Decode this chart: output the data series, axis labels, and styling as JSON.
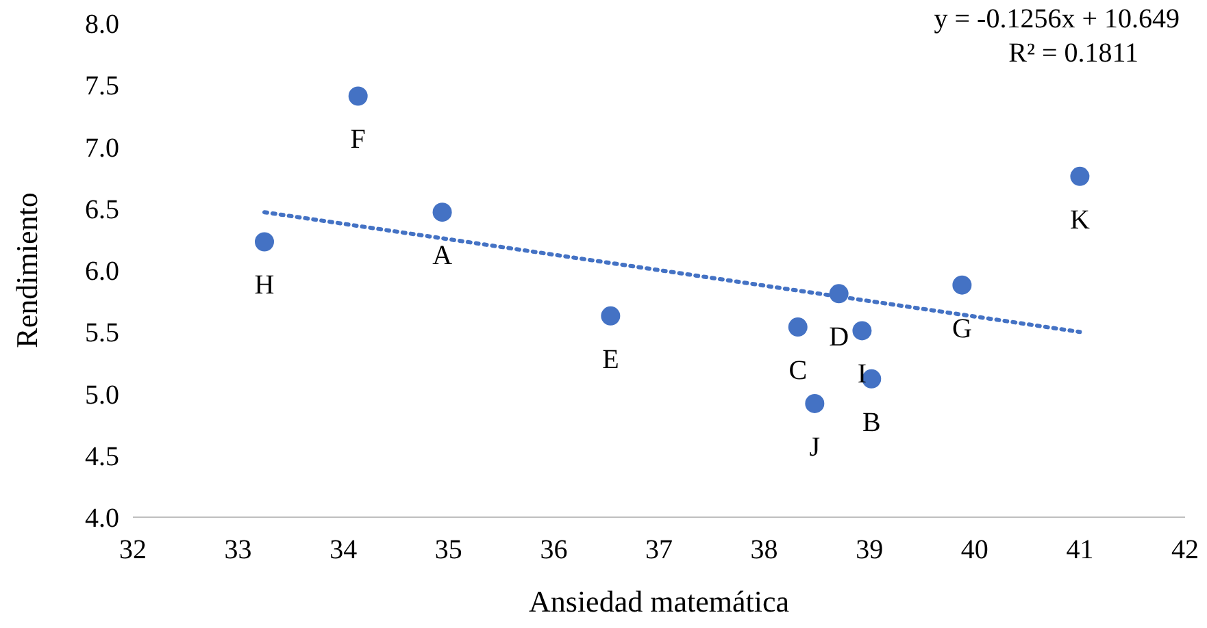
{
  "chart_data": {
    "type": "scatter",
    "xlabel": "Ansiedad matemática",
    "ylabel": "Rendimiento",
    "xlim": [
      32,
      42
    ],
    "xticks": [
      32,
      33,
      34,
      35,
      36,
      37,
      38,
      39,
      40,
      41,
      42
    ],
    "ylim": [
      4,
      8
    ],
    "yticks": [
      {
        "value": 4,
        "label": "4.0"
      },
      {
        "value": 4.5,
        "label": "4.5"
      },
      {
        "value": 5,
        "label": "5.0"
      },
      {
        "value": 5.5,
        "label": "5.5"
      },
      {
        "value": 6,
        "label": "6.0"
      },
      {
        "value": 6.5,
        "label": "6.5"
      },
      {
        "value": 7,
        "label": "7.0"
      },
      {
        "value": 7.5,
        "label": "7.5"
      },
      {
        "value": 8,
        "label": "8.0"
      }
    ],
    "grid": false,
    "marker": "circle",
    "series": [
      {
        "color": "#4472c4",
        "x": [
          33.25,
          34.14,
          34.94,
          36.54,
          38.32,
          38.48,
          38.71,
          38.93,
          39.02,
          39.88,
          41.0
        ],
        "values": [
          6.23,
          7.41,
          6.47,
          5.63,
          5.54,
          4.92,
          5.81,
          5.51,
          5.12,
          5.88,
          6.76
        ]
      },
      {
        "type": "line",
        "color": "#4472c4",
        "line_style": "dotted",
        "marker": "none",
        "x": [
          33.25,
          41
        ],
        "values": [
          6.47,
          5.5
        ]
      }
    ],
    "annotations": [
      "y = -0.1256x + 10.649",
      "R² = 0.1811",
      {
        "text": "H",
        "x": 33.25,
        "y": 6.23
      },
      {
        "text": "F",
        "x": 34.14,
        "y": 7.41
      },
      {
        "text": "A",
        "x": 34.94,
        "y": 6.47
      },
      {
        "text": "E",
        "x": 36.54,
        "y": 5.63
      },
      {
        "text": "C",
        "x": 38.32,
        "y": 5.54
      },
      {
        "text": "J",
        "x": 38.48,
        "y": 4.92
      },
      {
        "text": "D",
        "x": 38.71,
        "y": 5.81
      },
      {
        "text": "I",
        "x": 38.93,
        "y": 5.51
      },
      {
        "text": "B",
        "x": 39.02,
        "y": 5.12
      },
      {
        "text": "G",
        "x": 39.88,
        "y": 5.88
      },
      {
        "text": "K",
        "x": 41.0,
        "y": 6.76
      }
    ]
  }
}
